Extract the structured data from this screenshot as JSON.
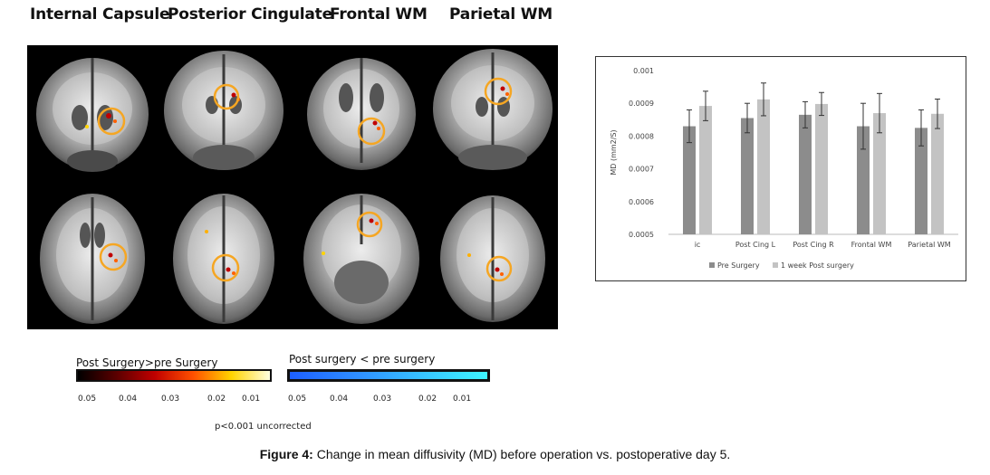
{
  "column_titles": [
    "Internal Capsule",
    "Posterior Cingulate",
    "Frontal WM",
    "Parietal WM"
  ],
  "colorbar_red": {
    "title": "Post Surgery>pre Surgery",
    "ticks": [
      "0.05",
      "0.04",
      "0.03",
      "0.02",
      "0.01"
    ]
  },
  "colorbar_blue": {
    "title": "Post surgery < pre surgery",
    "ticks": [
      "0.05",
      "0.04",
      "0.03",
      "0.02",
      "0.01"
    ]
  },
  "threshold_note": "p<0.001 uncorrected",
  "caption": {
    "label": "Figure 4:",
    "text": "Change in mean diffusivity (MD) before operation vs. postoperative day 5."
  },
  "colors": {
    "pre_bar": "#8c8c8c",
    "post_bar": "#c3c3c3",
    "circle": "#f5a623"
  },
  "chart_data": {
    "type": "bar",
    "categories": [
      "ic",
      "Post Cing L",
      "Post Cing R",
      "Frontal WM",
      "Parietal WM"
    ],
    "series": [
      {
        "name": "Pre Surgery",
        "values": [
          0.00083,
          0.000855,
          0.000865,
          0.00083,
          0.000825
        ],
        "errors": [
          5e-05,
          4.5e-05,
          4e-05,
          7e-05,
          5.5e-05
        ]
      },
      {
        "name": "1 week Post surgery",
        "values": [
          0.000892,
          0.000912,
          0.000898,
          0.00087,
          0.000868
        ],
        "errors": [
          4.5e-05,
          5e-05,
          3.5e-05,
          6e-05,
          4.5e-05
        ]
      }
    ],
    "ylabel": "MD (mm2/S)",
    "ylim": [
      0.0005,
      0.001
    ],
    "yticks": [
      "0.0005",
      "0.0006",
      "0.0007",
      "0.0008",
      "0.0009",
      "0.001"
    ],
    "legend": "bottom",
    "grid": false
  }
}
